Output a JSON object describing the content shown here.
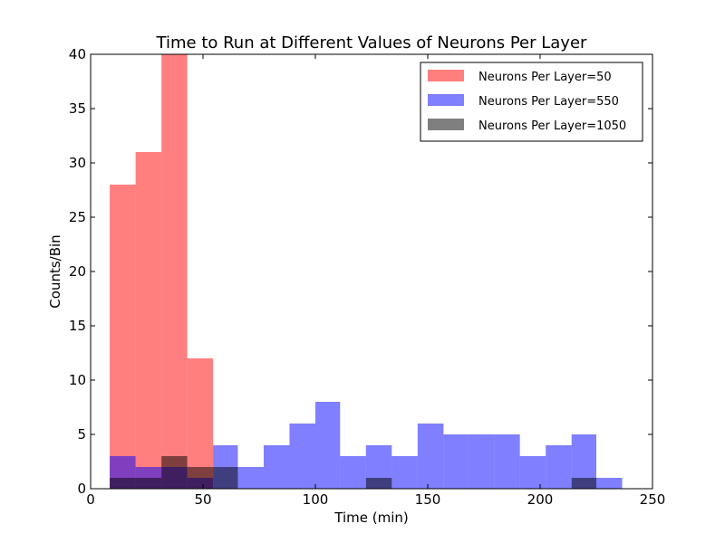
{
  "chart_data": {
    "type": "bar",
    "title": "Time to Run at Different Values of Neurons Per Layer",
    "xlabel": "Time (min)",
    "ylabel": "Counts/Bin",
    "xlim": [
      0,
      250
    ],
    "ylim": [
      0,
      40
    ],
    "xticks": [
      0,
      50,
      100,
      150,
      200,
      250
    ],
    "yticks": [
      0,
      5,
      10,
      15,
      20,
      25,
      30,
      35,
      40
    ],
    "grid": false,
    "legend_position": "top-right",
    "series": [
      {
        "name": "Neurons Per Layer=50",
        "color": "#ff0000",
        "opacity": 0.5,
        "bins": [
          {
            "x0": 8.5,
            "x1": 20,
            "value": 28
          },
          {
            "x0": 20,
            "x1": 31.5,
            "value": 31
          },
          {
            "x0": 31.5,
            "x1": 43,
            "value": 40
          },
          {
            "x0": 43,
            "x1": 54.5,
            "value": 12
          }
        ]
      },
      {
        "name": "Neurons Per Layer=550",
        "color": "#0000ff",
        "opacity": 0.5,
        "bins": [
          {
            "x0": 8.5,
            "x1": 20,
            "value": 3
          },
          {
            "x0": 20,
            "x1": 31.5,
            "value": 2
          },
          {
            "x0": 31.5,
            "x1": 43,
            "value": 2
          },
          {
            "x0": 43,
            "x1": 54.5,
            "value": 1
          },
          {
            "x0": 54.5,
            "x1": 65.5,
            "value": 4
          },
          {
            "x0": 65.5,
            "x1": 77,
            "value": 2
          },
          {
            "x0": 77,
            "x1": 88.5,
            "value": 4
          },
          {
            "x0": 88.5,
            "x1": 100,
            "value": 6
          },
          {
            "x0": 100,
            "x1": 111,
            "value": 8
          },
          {
            "x0": 111,
            "x1": 122.5,
            "value": 3
          },
          {
            "x0": 122.5,
            "x1": 134,
            "value": 4
          },
          {
            "x0": 134,
            "x1": 145.5,
            "value": 3
          },
          {
            "x0": 145.5,
            "x1": 157,
            "value": 6
          },
          {
            "x0": 157,
            "x1": 168,
            "value": 5
          },
          {
            "x0": 168,
            "x1": 179.5,
            "value": 5
          },
          {
            "x0": 179.5,
            "x1": 191,
            "value": 5
          },
          {
            "x0": 191,
            "x1": 202.5,
            "value": 3
          },
          {
            "x0": 202.5,
            "x1": 214,
            "value": 4
          },
          {
            "x0": 214,
            "x1": 225,
            "value": 5
          },
          {
            "x0": 225,
            "x1": 236.5,
            "value": 1
          }
        ]
      },
      {
        "name": "Neurons Per Layer=1050",
        "color": "#000000",
        "opacity": 0.5,
        "bins": [
          {
            "x0": 8.5,
            "x1": 20,
            "value": 1
          },
          {
            "x0": 20,
            "x1": 31.5,
            "value": 1
          },
          {
            "x0": 31.5,
            "x1": 43,
            "value": 3
          },
          {
            "x0": 43,
            "x1": 54.5,
            "value": 2
          },
          {
            "x0": 54.5,
            "x1": 65.5,
            "value": 2
          },
          {
            "x0": 122.5,
            "x1": 134,
            "value": 1
          },
          {
            "x0": 214,
            "x1": 225,
            "value": 1
          }
        ]
      }
    ]
  }
}
